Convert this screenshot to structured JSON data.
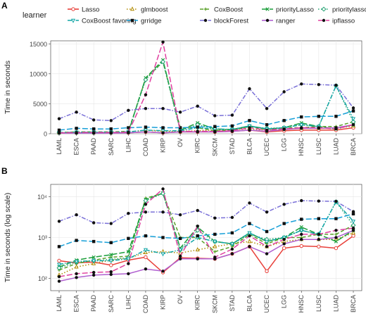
{
  "legend": {
    "title": "learner",
    "items": [
      {
        "name": "Lasso",
        "color": "#e8403a",
        "dash": "solid",
        "marker": "open-circle"
      },
      {
        "name": "glmboost",
        "color": "#b08a00",
        "dash": "dotted",
        "marker": "open-triangle"
      },
      {
        "name": "CoxBoost",
        "color": "#5aa028",
        "dash": "dashed",
        "marker": "plus"
      },
      {
        "name": "priorityLasso",
        "color": "#1a9e3a",
        "dash": "longdash",
        "marker": "x"
      },
      {
        "name": "prioritylassofavoring",
        "color": "#20a070",
        "dash": "dotted",
        "marker": "open-diamond"
      },
      {
        "name": "CoxBoost favoring",
        "color": "#10a5a5",
        "dash": "dotdash",
        "marker": "triangle-down"
      },
      {
        "name": "grridge",
        "color": "#18a0d8",
        "dash": "longdash",
        "marker": "square"
      },
      {
        "name": "blockForest",
        "color": "#7a70d8",
        "dash": "dotdash",
        "marker": "dot"
      },
      {
        "name": "ranger",
        "color": "#b060d0",
        "dash": "solid",
        "marker": "dot"
      },
      {
        "name": "ipflasso",
        "color": "#e040a0",
        "dash": "longdash",
        "marker": "dot"
      }
    ]
  },
  "chart_data": [
    {
      "type": "line",
      "panel_label": "A",
      "ylabel": "Time in seconds",
      "xlabel": "",
      "scale": "linear",
      "ylim": [
        0,
        15500
      ],
      "yticks": [
        0,
        5000,
        10000,
        15000
      ],
      "grid": true,
      "categories": [
        "LAML",
        "ESCA",
        "PAAD",
        "SARC",
        "LIHC",
        "COAD",
        "KIRP",
        "OV",
        "KIRC",
        "SKCM",
        "STAD",
        "BLCA",
        "UCEC",
        "LGG",
        "HNSC",
        "LUSC",
        "LUAD",
        "BRCA"
      ],
      "series": [
        {
          "name": "Lasso",
          "values": [
            150,
            150,
            150,
            150,
            150,
            300,
            150,
            300,
            300,
            300,
            400,
            600,
            300,
            500,
            600,
            600,
            600,
            1000
          ]
        },
        {
          "name": "glmboost",
          "values": [
            200,
            250,
            250,
            250,
            300,
            600,
            400,
            400,
            500,
            600,
            700,
            800,
            600,
            800,
            900,
            900,
            900,
            1300
          ]
        },
        {
          "name": "CoxBoost",
          "values": [
            200,
            300,
            300,
            300,
            400,
            9200,
            12000,
            1000,
            1000,
            500,
            600,
            1200,
            700,
            1000,
            1000,
            1200,
            1200,
            2000
          ]
        },
        {
          "name": "priorityLasso",
          "values": [
            150,
            200,
            200,
            200,
            250,
            9300,
            12300,
            600,
            1800,
            800,
            700,
            1300,
            800,
            1000,
            1800,
            1200,
            800,
            1500
          ]
        },
        {
          "name": "prioritylassofavoring",
          "values": [
            200,
            250,
            250,
            250,
            300,
            9000,
            12000,
            500,
            1500,
            800,
            700,
            1200,
            900,
            1000,
            1500,
            1200,
            8000,
            2000
          ]
        },
        {
          "name": "CoxBoost favoring",
          "values": [
            200,
            250,
            250,
            250,
            300,
            600,
            500,
            500,
            1000,
            800,
            700,
            1300,
            800,
            1000,
            1500,
            1200,
            8000,
            2500
          ]
        },
        {
          "name": "grridge",
          "values": [
            600,
            900,
            800,
            800,
            1000,
            1100,
            1000,
            1000,
            1100,
            1200,
            1300,
            2200,
            1500,
            2200,
            2800,
            2900,
            2900,
            3800
          ]
        },
        {
          "name": "blockForest",
          "values": [
            2500,
            3600,
            2300,
            2200,
            3900,
            4200,
            4200,
            3600,
            4600,
            3000,
            3100,
            7500,
            4200,
            7000,
            8300,
            8200,
            8100,
            4300
          ]
        },
        {
          "name": "ranger",
          "values": [
            100,
            100,
            100,
            100,
            150,
            300,
            150,
            300,
            300,
            300,
            400,
            600,
            400,
            700,
            900,
            900,
            1000,
            1500
          ]
        },
        {
          "name": "ipflasso",
          "values": [
            150,
            200,
            200,
            200,
            250,
            6500,
            15300,
            400,
            400,
            400,
            500,
            1000,
            600,
            800,
            1000,
            1000,
            800,
            1500
          ]
        }
      ]
    },
    {
      "type": "line",
      "panel_label": "B",
      "ylabel": "Time in seconds (log scale)",
      "xlabel": "",
      "scale": "log",
      "ylim": [
        50,
        20000
      ],
      "yticks": [
        100,
        1000,
        10000
      ],
      "ytick_labels": [
        "10²",
        "10³",
        "10⁴"
      ],
      "grid": true,
      "categories": [
        "LAML",
        "ESCA",
        "PAAD",
        "SARC",
        "LIHC",
        "COAD",
        "KIRP",
        "OV",
        "KIRC",
        "SKCM",
        "STAD",
        "BLCA",
        "UCEC",
        "LGG",
        "HNSC",
        "LUSC",
        "LUAD",
        "BRCA"
      ],
      "series": [
        {
          "name": "Lasso",
          "values": [
            270,
            240,
            250,
            210,
            280,
            330,
            140,
            320,
            310,
            300,
            400,
            600,
            150,
            550,
            620,
            600,
            550,
            1100
          ]
        },
        {
          "name": "glmboost",
          "values": [
            120,
            190,
            230,
            280,
            310,
            430,
            450,
            420,
            500,
            600,
            700,
            800,
            600,
            800,
            900,
            900,
            900,
            1300
          ]
        },
        {
          "name": "CoxBoost",
          "values": [
            160,
            230,
            280,
            330,
            350,
            9200,
            12000,
            1000,
            1000,
            450,
            600,
            1200,
            700,
            1000,
            1000,
            1200,
            1200,
            2000
          ]
        },
        {
          "name": "priorityLasso",
          "values": [
            190,
            280,
            330,
            380,
            450,
            8500,
            12300,
            550,
            1800,
            800,
            700,
            1300,
            800,
            1000,
            1800,
            1200,
            800,
            1500
          ]
        },
        {
          "name": "prioritylassofavoring",
          "values": [
            180,
            250,
            270,
            290,
            320,
            8000,
            12000,
            500,
            1500,
            800,
            700,
            1200,
            900,
            1000,
            1500,
            1200,
            7500,
            2000
          ]
        },
        {
          "name": "CoxBoost favoring",
          "values": [
            220,
            260,
            270,
            270,
            300,
            500,
            400,
            500,
            1000,
            800,
            700,
            1300,
            800,
            1000,
            1500,
            1200,
            7500,
            2500
          ]
        },
        {
          "name": "grridge",
          "values": [
            600,
            850,
            800,
            750,
            950,
            1100,
            1000,
            950,
            1100,
            1200,
            1300,
            2200,
            1400,
            2200,
            2800,
            2900,
            2900,
            3800
          ]
        },
        {
          "name": "blockForest",
          "values": [
            2500,
            3600,
            2300,
            2200,
            3900,
            4200,
            4200,
            3600,
            4600,
            3000,
            3100,
            7000,
            4200,
            6500,
            8000,
            7800,
            7700,
            4300
          ]
        },
        {
          "name": "ranger",
          "values": [
            85,
            105,
            120,
            125,
            130,
            170,
            150,
            300,
            300,
            300,
            400,
            600,
            400,
            700,
            900,
            900,
            1000,
            1500
          ]
        },
        {
          "name": "ipflasso",
          "values": [
            110,
            130,
            140,
            145,
            230,
            6500,
            15500,
            350,
            1900,
            330,
            520,
            1100,
            600,
            900,
            1200,
            1200,
            1500,
            1700
          ]
        }
      ]
    }
  ]
}
